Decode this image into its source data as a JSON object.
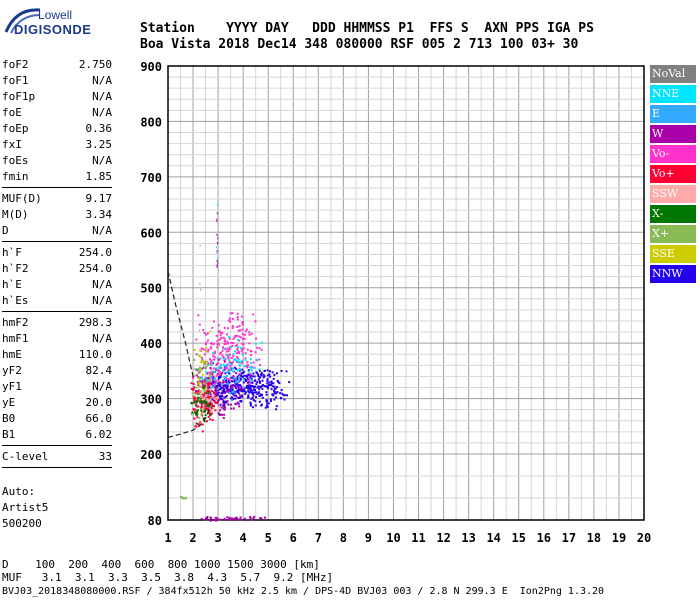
{
  "logo": {
    "line1": "Lowell",
    "line2": "DIGISONDE"
  },
  "header": {
    "row1": "Station    YYYY DAY   DDD HHMMSS P1  FFS S  AXN PPS IGA PS",
    "row2": "Boa Vista 2018 Dec14 348 080000 RSF 005 2 713 100 03+ 30"
  },
  "params": [
    [
      {
        "name": "foF2",
        "value": "2.750"
      },
      {
        "name": "foF1",
        "value": "N/A"
      },
      {
        "name": "foF1p",
        "value": "N/A"
      },
      {
        "name": "foE",
        "value": "N/A"
      },
      {
        "name": "foEp",
        "value": "0.36"
      },
      {
        "name": "fxI",
        "value": "3.25"
      },
      {
        "name": "foEs",
        "value": "N/A"
      },
      {
        "name": "fmin",
        "value": "1.85"
      }
    ],
    [
      {
        "name": "MUF(D)",
        "value": "9.17"
      },
      {
        "name": "M(D)",
        "value": "3.34"
      },
      {
        "name": "D",
        "value": "N/A"
      }
    ],
    [
      {
        "name": "h`F",
        "value": "254.0"
      },
      {
        "name": "h`F2",
        "value": "254.0"
      },
      {
        "name": "h`E",
        "value": "N/A"
      },
      {
        "name": "h`Es",
        "value": "N/A"
      }
    ],
    [
      {
        "name": "hmF2",
        "value": "298.3"
      },
      {
        "name": "hmF1",
        "value": "N/A"
      },
      {
        "name": "hmE",
        "value": "110.0"
      },
      {
        "name": "yF2",
        "value": "82.4"
      },
      {
        "name": "yF1",
        "value": "N/A"
      },
      {
        "name": "yE",
        "value": "20.0"
      },
      {
        "name": "B0",
        "value": "66.0"
      },
      {
        "name": "B1",
        "value": "6.02"
      }
    ],
    [
      {
        "name": "C-level",
        "value": "33"
      }
    ]
  ],
  "auto": {
    "line1": "Auto:",
    "line2": "Artist5",
    "line3": "500200"
  },
  "legend": [
    {
      "label": "NoVal",
      "color": "#808080"
    },
    {
      "label": "NNE",
      "color": "#00e5ff"
    },
    {
      "label": "E",
      "color": "#33aaff"
    },
    {
      "label": "W",
      "color": "#aa00aa"
    },
    {
      "label": "Vo-",
      "color": "#ff33cc"
    },
    {
      "label": "Vo+",
      "color": "#ff0033"
    },
    {
      "label": "SSW",
      "color": "#ffaaaa"
    },
    {
      "label": "X-",
      "color": "#007700"
    },
    {
      "label": "X+",
      "color": "#88bb55"
    },
    {
      "label": "SSE",
      "color": "#cccc00"
    },
    {
      "label": "NNW",
      "color": "#2200ee"
    }
  ],
  "bottom": {
    "d_row": "D    100  200  400  600  800 1000 1500 3000 [km]",
    "muf_row": "MUF   3.1  3.1  3.3  3.5  3.8  4.3  5.7  9.2 [MHz]",
    "footer": "BVJ03_2018348080000.RSF / 384fx512h 50 kHz 2.5 km / DPS-4D BVJ03 003 / 2.8 N 299.3 E  Ion2Png 1.3.20"
  },
  "chart_data": {
    "type": "scatter",
    "xlim": [
      1,
      20
    ],
    "ylim": [
      80,
      900
    ],
    "x_ticks": [
      1,
      2,
      3,
      4,
      5,
      6,
      7,
      8,
      9,
      10,
      11,
      12,
      13,
      14,
      15,
      16,
      17,
      18,
      19,
      20
    ],
    "y_ticks": [
      80,
      200,
      300,
      400,
      500,
      600,
      700,
      800,
      900
    ],
    "grid": true,
    "legend_placement": "right",
    "clusters": [
      {
        "series": "W",
        "x": [
          1.9,
          4.0
        ],
        "y": [
          260,
          380
        ],
        "n": 220
      },
      {
        "series": "NNW",
        "x": [
          2.5,
          5.9
        ],
        "y": [
          280,
          360
        ],
        "n": 320
      },
      {
        "series": "Vo-",
        "x": [
          1.9,
          4.8
        ],
        "y": [
          300,
          470
        ],
        "n": 230
      },
      {
        "series": "Vo+",
        "x": [
          1.8,
          3.0
        ],
        "y": [
          240,
          340
        ],
        "n": 120
      },
      {
        "series": "NNE",
        "x": [
          2.0,
          5.0
        ],
        "y": [
          300,
          420
        ],
        "n": 60
      },
      {
        "series": "E",
        "x": [
          2.0,
          4.5
        ],
        "y": [
          290,
          400
        ],
        "n": 40
      },
      {
        "series": "X-",
        "x": [
          1.8,
          2.8
        ],
        "y": [
          250,
          330
        ],
        "n": 45
      },
      {
        "series": "X+",
        "x": [
          1.8,
          2.8
        ],
        "y": [
          250,
          400
        ],
        "n": 45
      },
      {
        "series": "SSW",
        "x": [
          2.0,
          3.2
        ],
        "y": [
          270,
          330
        ],
        "n": 30
      },
      {
        "series": "SSE",
        "x": [
          1.9,
          2.8
        ],
        "y": [
          300,
          440
        ],
        "n": 20
      },
      {
        "series": "X+",
        "x": [
          1.3,
          1.8
        ],
        "y": [
          120,
          124
        ],
        "n": 8
      },
      {
        "series": "W",
        "x": [
          1.8,
          5.2
        ],
        "y": [
          80,
          88
        ],
        "n": 45
      }
    ],
    "spikes": [
      {
        "series": "W",
        "x": [
          2.9,
          3.0
        ],
        "y": [
          450,
          730
        ],
        "n": 12
      },
      {
        "series": "NNE",
        "x": [
          2.9,
          3.0
        ],
        "y": [
          480,
          690
        ],
        "n": 4
      },
      {
        "series": "X+",
        "x": [
          2.2,
          2.3
        ],
        "y": [
          400,
          590
        ],
        "n": 5
      }
    ],
    "profile": [
      {
        "x": 1.0,
        "y": 530
      },
      {
        "x": 1.3,
        "y": 470
      },
      {
        "x": 1.7,
        "y": 400
      },
      {
        "x": 2.0,
        "y": 340
      }
    ],
    "trace": [
      {
        "x": 1.0,
        "y": 230
      },
      {
        "x": 1.5,
        "y": 236
      },
      {
        "x": 2.0,
        "y": 243
      },
      {
        "x": 2.3,
        "y": 252
      },
      {
        "x": 2.55,
        "y": 268
      },
      {
        "x": 2.75,
        "y": 300
      }
    ]
  }
}
